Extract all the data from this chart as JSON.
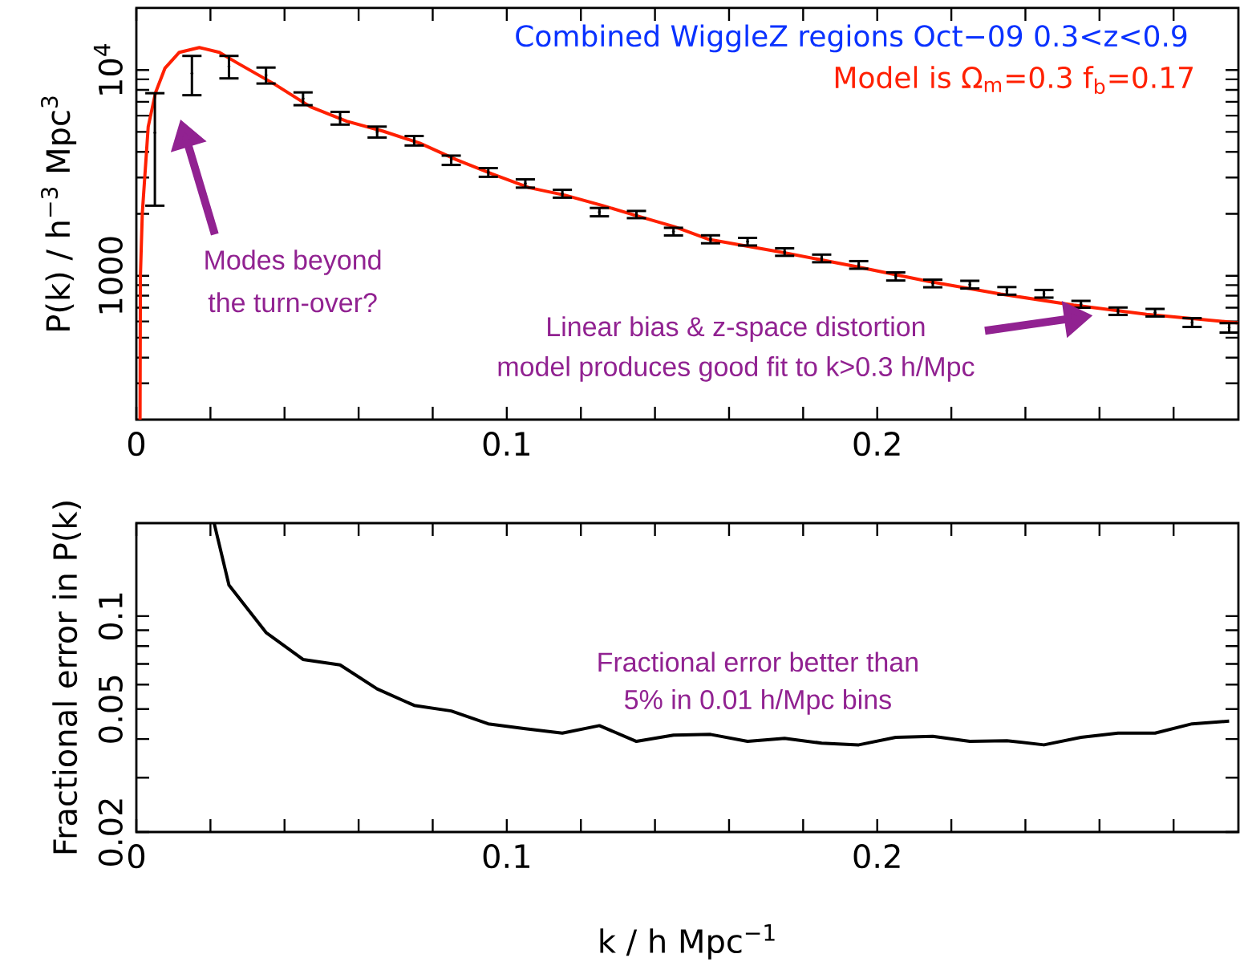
{
  "chart_data": [
    {
      "type": "line",
      "ylabel": "P(k) / h$^{−3}$ Mpc$^{3}$",
      "log": "y",
      "xlim": [
        0,
        0.2975
      ],
      "ylim": [
        200,
        20000
      ],
      "xticks": [
        0,
        {
          "value": 0.02,
          "label": null
        },
        {
          "value": 0.04,
          "label": null
        },
        {
          "value": 0.06,
          "label": null
        },
        {
          "value": 0.08,
          "label": null
        },
        0.1,
        {
          "value": 0.12,
          "label": null
        },
        {
          "value": 0.14,
          "label": null
        },
        {
          "value": 0.16,
          "label": null
        },
        {
          "value": 0.18,
          "label": null
        },
        0.2,
        {
          "value": 0.22,
          "label": null
        },
        {
          "value": 0.24,
          "label": null
        },
        {
          "value": 0.26,
          "label": null
        },
        {
          "value": 0.28,
          "label": null
        }
      ],
      "yticks": [
        {
          "value": 300,
          "label": null
        },
        {
          "value": 400,
          "label": null
        },
        {
          "value": 500,
          "label": null
        },
        {
          "value": 600,
          "label": null
        },
        {
          "value": 700,
          "label": null
        },
        {
          "value": 800,
          "label": null
        },
        {
          "value": 900,
          "label": null
        },
        1000,
        {
          "value": 2000,
          "label": null
        },
        {
          "value": 3000,
          "label": null
        },
        {
          "value": 4000,
          "label": null
        },
        {
          "value": 5000,
          "label": null
        },
        {
          "value": 6000,
          "label": null
        },
        {
          "value": 7000,
          "label": null
        },
        {
          "value": 8000,
          "label": null
        },
        {
          "value": 9000,
          "label": null
        },
        {
          "value": 10000,
          "label": "10$^{4}$"
        }
      ],
      "series": [
        {
          "type": "scatter",
          "color": "#000000",
          "x": [
            0.005,
            0.015,
            0.025,
            0.035,
            0.045,
            0.055,
            0.065,
            0.075,
            0.085,
            0.095,
            0.105,
            0.115,
            0.125,
            0.135,
            0.145,
            0.155,
            0.165,
            0.175,
            0.185,
            0.195,
            0.205,
            0.215,
            0.225,
            0.235,
            0.245,
            0.255,
            0.265,
            0.275,
            0.285,
            0.295
          ],
          "values": [
            4950,
            9620,
            10400,
            9430,
            7260,
            5840,
            5000,
            4535,
            3645,
            3180,
            2810,
            2505,
            2040,
            1985,
            1640,
            1505,
            1465,
            1305,
            1215,
            1130,
            993,
            918,
            906,
            845,
            818,
            727,
            673,
            662,
            593,
            559
          ],
          "errors": [
            2760,
            2080,
            1300,
            840,
            520,
            415,
            305,
            240,
            190,
            155,
            130,
            110,
            95,
            80,
            70,
            67,
            62,
            55,
            52,
            48,
            45,
            39,
            39,
            36,
            35,
            28,
            28,
            28,
            29,
            30
          ]
        },
        {
          "type": "line",
          "color": "#ff2000",
          "x": [
            0.001,
            0.0011,
            0.0016,
            0.0032,
            0.0052,
            0.0077,
            0.0116,
            0.017,
            0.0224,
            0.0273,
            0.0372,
            0.047,
            0.0568,
            0.0666,
            0.0765,
            0.0863,
            0.0961,
            0.106,
            0.1158,
            0.1256,
            0.1354,
            0.1453,
            0.1547,
            0.1743,
            0.194,
            0.2136,
            0.2333,
            0.253,
            0.2727,
            0.2975
          ],
          "values": [
            200,
            1000,
            2000,
            5300,
            7780,
            10180,
            12180,
            12850,
            12180,
            10800,
            8550,
            6620,
            5630,
            5040,
            4410,
            3670,
            3120,
            2680,
            2460,
            2200,
            1950,
            1730,
            1500,
            1300,
            1110,
            940,
            815,
            720,
            650,
            590
          ]
        }
      ],
      "annotations": [
        "Combined WiggleZ regions Oct−09 0.3<z<0.9",
        "Model is Ω$_{m}$=0.3 f$_{b}$=0.17",
        "Modes beyond",
        "the turn-over?",
        "Linear bias & z-space distortion",
        "model produces good fit to k>0.3 h/Mpc"
      ]
    },
    {
      "type": "line",
      "xlabel": "k / h Mpc$^{−1}$",
      "ylabel": "Fractional error in P(k)",
      "log": "y",
      "xlim": [
        0,
        0.2975
      ],
      "ylim": [
        0.02,
        0.2
      ],
      "xticks": [
        0,
        {
          "value": 0.02,
          "label": null
        },
        {
          "value": 0.04,
          "label": null
        },
        {
          "value": 0.06,
          "label": null
        },
        {
          "value": 0.08,
          "label": null
        },
        0.1,
        {
          "value": 0.12,
          "label": null
        },
        {
          "value": 0.14,
          "label": null
        },
        {
          "value": 0.16,
          "label": null
        },
        {
          "value": 0.18,
          "label": null
        },
        0.2,
        {
          "value": 0.22,
          "label": null
        },
        {
          "value": 0.24,
          "label": null
        },
        {
          "value": 0.26,
          "label": null
        },
        {
          "value": 0.28,
          "label": null
        }
      ],
      "yticks": [
        0.02,
        {
          "value": 0.03,
          "label": null
        },
        {
          "value": 0.04,
          "label": null
        },
        0.05,
        {
          "value": 0.06,
          "label": null
        },
        {
          "value": 0.07,
          "label": null
        },
        {
          "value": 0.08,
          "label": null
        },
        {
          "value": 0.09,
          "label": null
        },
        0.1
      ],
      "series": [
        {
          "color": "#000000",
          "x": [
            0.021,
            0.025,
            0.035,
            0.045,
            0.055,
            0.065,
            0.075,
            0.085,
            0.095,
            0.105,
            0.115,
            0.125,
            0.135,
            0.145,
            0.155,
            0.165,
            0.175,
            0.185,
            0.195,
            0.205,
            0.215,
            0.225,
            0.235,
            0.245,
            0.255,
            0.265,
            0.275,
            0.285,
            0.295
          ],
          "values": [
            0.2,
            0.126,
            0.0885,
            0.0724,
            0.0695,
            0.0581,
            0.0514,
            0.0493,
            0.0448,
            0.0432,
            0.0418,
            0.0442,
            0.0393,
            0.0412,
            0.0414,
            0.0393,
            0.0402,
            0.0388,
            0.0383,
            0.0405,
            0.0408,
            0.0393,
            0.0395,
            0.0383,
            0.0405,
            0.0418,
            0.0418,
            0.0448,
            0.0457
          ]
        }
      ],
      "annotations": [
        "Fractional error better than",
        "5% in 0.01 h/Mpc bins"
      ]
    }
  ]
}
